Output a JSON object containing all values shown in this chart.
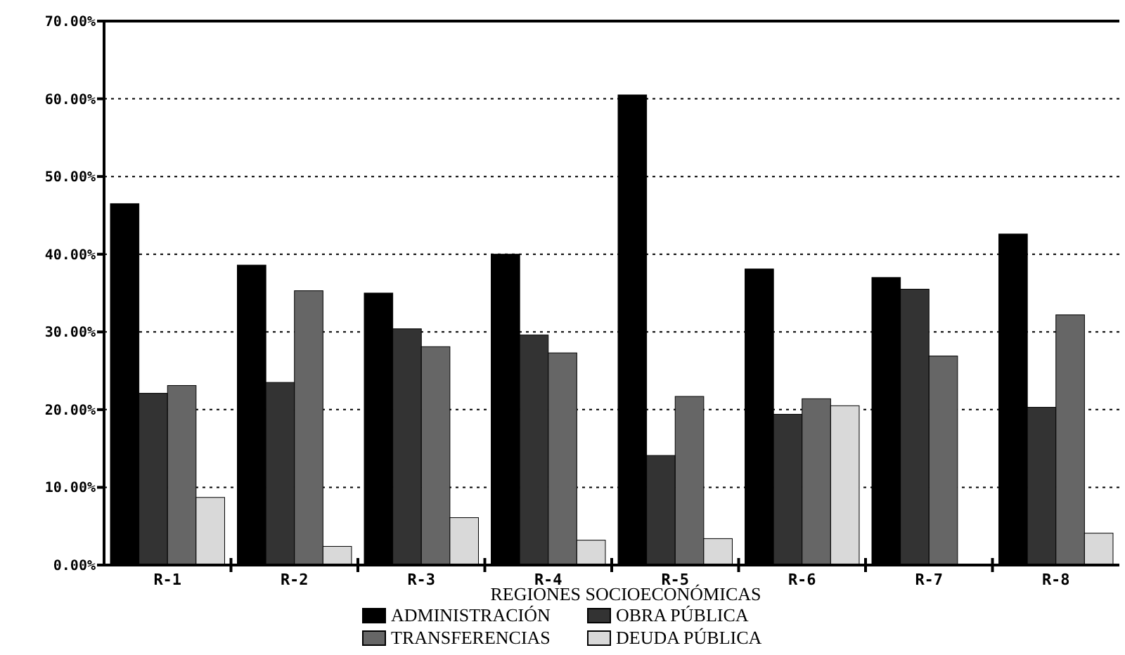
{
  "chart_data": {
    "type": "bar",
    "xlabel": "REGIONES SOCIOECONÓMICAS",
    "categories": [
      "R-1",
      "R-2",
      "R-3",
      "R-4",
      "R-5",
      "R-6",
      "R-7",
      "R-8"
    ],
    "series": [
      {
        "name": "ADMINISTRACIÓN",
        "color": "#000000",
        "values": [
          46.5,
          38.6,
          35.0,
          40.0,
          60.5,
          38.1,
          37.0,
          42.6
        ]
      },
      {
        "name": "OBRA PÚBLICA",
        "color": "#333333",
        "values": [
          22.1,
          23.5,
          30.4,
          29.6,
          14.1,
          19.4,
          35.5,
          20.3
        ]
      },
      {
        "name": "TRANSFERENCIAS",
        "color": "#666666",
        "values": [
          23.1,
          35.3,
          28.1,
          27.3,
          21.7,
          21.4,
          26.9,
          32.2
        ]
      },
      {
        "name": "DEUDA PÚBLICA",
        "color": "#d9d9d9",
        "values": [
          8.7,
          2.4,
          6.1,
          3.2,
          3.4,
          20.5,
          0,
          4.1
        ]
      }
    ],
    "ylim": [
      0,
      70
    ],
    "yticks": [
      {
        "value": 0,
        "label": "0.00%"
      },
      {
        "value": 10,
        "label": "10.00%"
      },
      {
        "value": 20,
        "label": "20.00%"
      },
      {
        "value": 30,
        "label": "30.00%"
      },
      {
        "value": 40,
        "label": "40.00%"
      },
      {
        "value": 50,
        "label": "50.00%"
      },
      {
        "value": 60,
        "label": "60.00%"
      },
      {
        "value": 70,
        "label": "70.00%"
      }
    ],
    "grid": "y",
    "legend": "bottom"
  }
}
